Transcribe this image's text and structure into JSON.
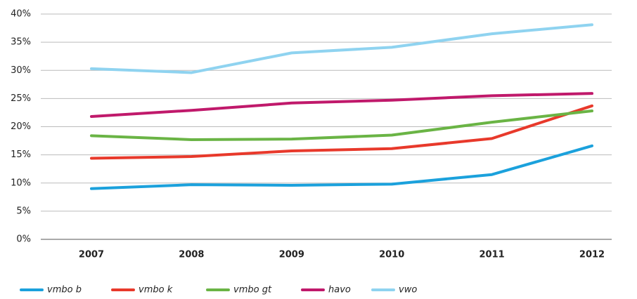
{
  "chart_data": {
    "type": "line",
    "categories": [
      "2007",
      "2008",
      "2009",
      "2010",
      "2011",
      "2012"
    ],
    "series": [
      {
        "name": "vmbo b",
        "color": "#1ba1dc",
        "values": [
          9.0,
          9.7,
          9.6,
          9.8,
          11.5,
          16.6
        ]
      },
      {
        "name": "vmbo k",
        "color": "#e8392b",
        "values": [
          14.4,
          14.7,
          15.7,
          16.1,
          17.9,
          23.7
        ]
      },
      {
        "name": "vmbo gt",
        "color": "#6ab445",
        "values": [
          18.4,
          17.7,
          17.8,
          18.5,
          20.8,
          22.8
        ]
      },
      {
        "name": "havo",
        "color": "#c0196b",
        "values": [
          21.8,
          22.9,
          24.2,
          24.7,
          25.5,
          25.9
        ]
      },
      {
        "name": "vwo",
        "color": "#8fd3f0",
        "values": [
          30.3,
          29.6,
          33.1,
          34.1,
          36.5,
          38.1
        ]
      }
    ],
    "ylim": [
      0,
      40
    ],
    "yticks": [
      {
        "value": 0,
        "label": "0%"
      },
      {
        "value": 5,
        "label": "5%"
      },
      {
        "value": 10,
        "label": "10%"
      },
      {
        "value": 15,
        "label": "15%"
      },
      {
        "value": 20,
        "label": "20%"
      },
      {
        "value": 25,
        "label": "25%"
      },
      {
        "value": 30,
        "label": "30%"
      },
      {
        "value": 35,
        "label": "35%"
      },
      {
        "value": 40,
        "label": "40%"
      }
    ],
    "grid": true,
    "legend": "bottom"
  }
}
